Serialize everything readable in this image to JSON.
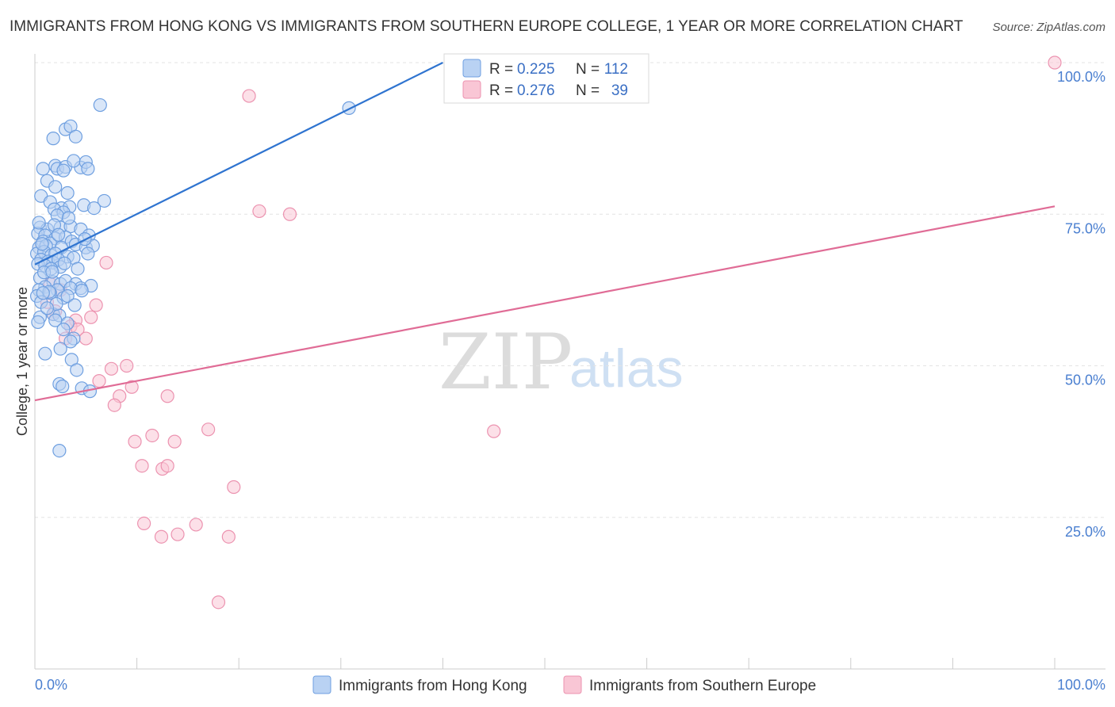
{
  "chart_data": {
    "type": "scatter",
    "title": "IMMIGRANTS FROM HONG KONG VS IMMIGRANTS FROM SOUTHERN EUROPE COLLEGE, 1 YEAR OR MORE CORRELATION CHART",
    "source": "Source: ZipAtlas.com",
    "xlabel": "",
    "ylabel": "College, 1 year or more",
    "xlim": [
      0,
      100
    ],
    "ylim": [
      0,
      100
    ],
    "x_tick_labels": {
      "left": "0.0%",
      "right": "100.0%"
    },
    "y_ticks": [
      {
        "value": 100,
        "label": "100.0%"
      },
      {
        "value": 75,
        "label": "75.0%"
      },
      {
        "value": 50,
        "label": "50.0%"
      },
      {
        "value": 25,
        "label": "25.0%"
      }
    ],
    "grid": true,
    "watermark": {
      "zip": "ZIP",
      "atlas": "atlas"
    },
    "stats": [
      {
        "r_label": "R = ",
        "r_value": "0.225",
        "n_label": "N = ",
        "n_value": "112"
      },
      {
        "r_label": "R = ",
        "r_value": "0.276",
        "n_label": "N = ",
        "n_value": "39"
      }
    ],
    "series": [
      {
        "name": "Immigrants from Hong Kong",
        "color": "#6e9fe0",
        "fill": "#b9d2f3",
        "line_color": "#2f74d0",
        "trend": {
          "x0": 0,
          "y0": 66.7,
          "x1": 40,
          "y1": 100
        },
        "points": [
          [
            6.4,
            93.0
          ],
          [
            3.0,
            89.0
          ],
          [
            3.5,
            89.5
          ],
          [
            1.8,
            87.5
          ],
          [
            4.0,
            87.8
          ],
          [
            0.8,
            82.5
          ],
          [
            2.0,
            83.0
          ],
          [
            2.2,
            82.5
          ],
          [
            3.0,
            82.8
          ],
          [
            2.8,
            82.2
          ],
          [
            4.5,
            82.7
          ],
          [
            3.8,
            83.8
          ],
          [
            5.0,
            83.6
          ],
          [
            5.2,
            82.5
          ],
          [
            1.2,
            80.5
          ],
          [
            2.0,
            79.5
          ],
          [
            3.2,
            78.5
          ],
          [
            0.6,
            78.0
          ],
          [
            1.5,
            77.0
          ],
          [
            4.8,
            76.5
          ],
          [
            6.8,
            77.2
          ],
          [
            2.6,
            76.0
          ],
          [
            3.4,
            76.2
          ],
          [
            5.8,
            76.0
          ],
          [
            1.9,
            75.8
          ],
          [
            2.8,
            75.3
          ],
          [
            2.2,
            74.8
          ],
          [
            0.5,
            72.8
          ],
          [
            1.2,
            72.5
          ],
          [
            2.5,
            72.8
          ],
          [
            3.5,
            73.0
          ],
          [
            4.5,
            72.5
          ],
          [
            0.3,
            71.8
          ],
          [
            1.0,
            71.5
          ],
          [
            2.0,
            71.0
          ],
          [
            3.0,
            71.2
          ],
          [
            5.3,
            71.5
          ],
          [
            0.8,
            70.5
          ],
          [
            1.5,
            70.2
          ],
          [
            3.6,
            70.5
          ],
          [
            0.4,
            69.5
          ],
          [
            1.1,
            69.8
          ],
          [
            2.6,
            69.5
          ],
          [
            4.0,
            70.0
          ],
          [
            5.0,
            69.5
          ],
          [
            5.7,
            69.8
          ],
          [
            0.2,
            68.5
          ],
          [
            0.9,
            68.8
          ],
          [
            1.6,
            68.2
          ],
          [
            2.0,
            68.5
          ],
          [
            3.2,
            68.0
          ],
          [
            3.8,
            67.8
          ],
          [
            0.6,
            67.5
          ],
          [
            1.3,
            67.2
          ],
          [
            1.8,
            67.0
          ],
          [
            2.3,
            67.5
          ],
          [
            0.3,
            66.8
          ],
          [
            1.0,
            66.5
          ],
          [
            2.5,
            66.3
          ],
          [
            4.2,
            66.0
          ],
          [
            5.2,
            68.5
          ],
          [
            1.6,
            66.0
          ],
          [
            0.5,
            64.5
          ],
          [
            1.8,
            63.8
          ],
          [
            2.5,
            63.5
          ],
          [
            3.0,
            64.0
          ],
          [
            4.0,
            63.5
          ],
          [
            5.5,
            63.2
          ],
          [
            4.5,
            62.8
          ],
          [
            1.0,
            63.0
          ],
          [
            0.4,
            62.5
          ],
          [
            2.2,
            62.5
          ],
          [
            3.5,
            62.8
          ],
          [
            4.6,
            62.4
          ],
          [
            0.2,
            61.5
          ],
          [
            1.5,
            62.0
          ],
          [
            2.8,
            61.2
          ],
          [
            3.2,
            61.5
          ],
          [
            0.6,
            60.5
          ],
          [
            1.8,
            58.5
          ],
          [
            2.4,
            58.3
          ],
          [
            0.5,
            58.0
          ],
          [
            2.0,
            57.5
          ],
          [
            3.2,
            57.0
          ],
          [
            2.8,
            56.0
          ],
          [
            3.8,
            54.5
          ],
          [
            3.5,
            54.0
          ],
          [
            0.3,
            57.2
          ],
          [
            2.5,
            52.8
          ],
          [
            1.0,
            52.0
          ],
          [
            3.6,
            51.0
          ],
          [
            4.1,
            49.3
          ],
          [
            2.4,
            47.0
          ],
          [
            2.7,
            46.6
          ],
          [
            4.6,
            46.3
          ],
          [
            5.4,
            45.8
          ],
          [
            2.4,
            36.0
          ],
          [
            30.8,
            92.5
          ],
          [
            1.4,
            62.2
          ],
          [
            0.8,
            62.0
          ],
          [
            2.1,
            60.2
          ],
          [
            1.2,
            59.5
          ],
          [
            3.9,
            60.0
          ],
          [
            0.9,
            65.4
          ],
          [
            1.7,
            65.5
          ],
          [
            2.9,
            66.9
          ],
          [
            4.9,
            70.9
          ],
          [
            0.7,
            70.1
          ],
          [
            1.9,
            73.2
          ],
          [
            3.3,
            74.4
          ],
          [
            0.4,
            73.6
          ],
          [
            2.3,
            71.6
          ]
        ]
      },
      {
        "name": "Immigrants from Southern Europe",
        "color": "#ec93b0",
        "fill": "#f9c6d5",
        "line_color": "#e06c96",
        "trend": {
          "x0": 0,
          "y0": 44.3,
          "x1": 100,
          "y1": 76.3
        },
        "points": [
          [
            100.0,
            100.0
          ],
          [
            21.0,
            94.5
          ],
          [
            22.0,
            75.5
          ],
          [
            25.0,
            75.0
          ],
          [
            7.0,
            67.0
          ],
          [
            1.5,
            63.5
          ],
          [
            2.5,
            62.5
          ],
          [
            6.0,
            60.0
          ],
          [
            1.2,
            60.5
          ],
          [
            2.0,
            59.0
          ],
          [
            5.5,
            58.0
          ],
          [
            1.8,
            58.5
          ],
          [
            4.0,
            57.5
          ],
          [
            3.5,
            56.5
          ],
          [
            4.2,
            56.0
          ],
          [
            3.0,
            54.5
          ],
          [
            5.0,
            54.5
          ],
          [
            7.5,
            49.5
          ],
          [
            9.0,
            50.0
          ],
          [
            6.3,
            47.5
          ],
          [
            9.5,
            46.5
          ],
          [
            8.3,
            45.0
          ],
          [
            13.0,
            45.0
          ],
          [
            7.8,
            43.5
          ],
          [
            17.0,
            39.5
          ],
          [
            11.5,
            38.5
          ],
          [
            9.8,
            37.5
          ],
          [
            13.7,
            37.5
          ],
          [
            10.5,
            33.5
          ],
          [
            12.5,
            33.0
          ],
          [
            13.0,
            33.5
          ],
          [
            19.5,
            30.0
          ],
          [
            10.7,
            24.0
          ],
          [
            15.8,
            23.8
          ],
          [
            12.4,
            21.8
          ],
          [
            14.0,
            22.2
          ],
          [
            19.0,
            21.8
          ],
          [
            18.0,
            11.0
          ],
          [
            45.0,
            39.2
          ]
        ]
      }
    ]
  }
}
